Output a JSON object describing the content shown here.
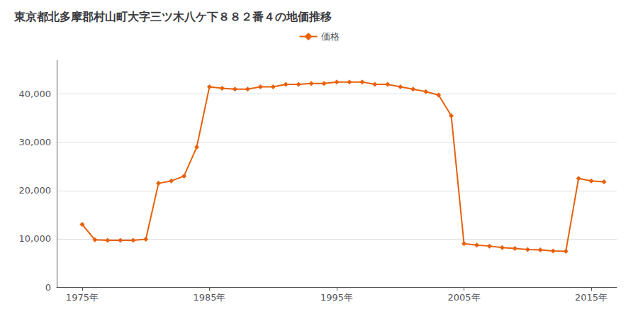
{
  "chart_data": {
    "type": "line",
    "title": "東京都北多摩郡村山町大字三ツ木八ケ下８８２番４の地価推移",
    "x": [
      1975,
      1976,
      1977,
      1978,
      1979,
      1980,
      1981,
      1982,
      1983,
      1984,
      1985,
      1986,
      1987,
      1988,
      1989,
      1990,
      1991,
      1992,
      1993,
      1994,
      1995,
      1996,
      1997,
      1998,
      1999,
      2000,
      2001,
      2002,
      2003,
      2004,
      2005,
      2006,
      2007,
      2008,
      2009,
      2010,
      2011,
      2012,
      2013,
      2014,
      2015,
      2016
    ],
    "series": [
      {
        "name": "価格",
        "color": "#E8600A",
        "marker": "diamond",
        "values": [
          13000,
          9800,
          9700,
          9700,
          9700,
          9900,
          21500,
          22000,
          23000,
          29000,
          41500,
          41200,
          41000,
          41000,
          41500,
          41500,
          42000,
          42000,
          42200,
          42200,
          42500,
          42500,
          42500,
          42000,
          42000,
          41500,
          41000,
          40500,
          39800,
          35500,
          9000,
          8700,
          8500,
          8200,
          8000,
          7800,
          7700,
          7500,
          7400,
          22500,
          22000,
          21800
        ]
      }
    ],
    "xlim": [
      1973,
      2017
    ],
    "xticks": [
      {
        "value": 1975,
        "label": "1975年"
      },
      {
        "value": 1985,
        "label": "1985年"
      },
      {
        "value": 1995,
        "label": "1995年"
      },
      {
        "value": 2005,
        "label": "2005年"
      },
      {
        "value": 2015,
        "label": "2015年"
      }
    ],
    "ylim": [
      0,
      47000
    ],
    "yticks": [
      0,
      {
        "value": 10000,
        "label": "10,000"
      },
      {
        "value": 20000,
        "label": "20,000"
      },
      {
        "value": 30000,
        "label": "30,000"
      },
      {
        "value": 40000,
        "label": "40,000"
      }
    ],
    "grid": true,
    "legend": "top"
  }
}
